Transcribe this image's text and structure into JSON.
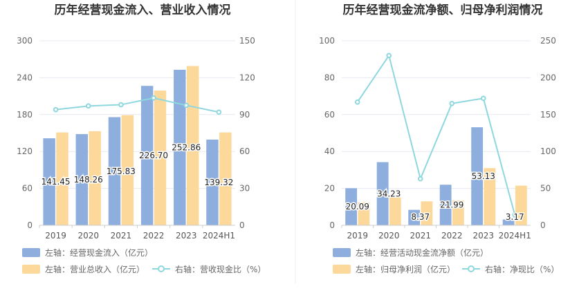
{
  "colors": {
    "bar_primary": "#8eaede",
    "bar_secondary": "#fcd99a",
    "line": "#8ed7de",
    "grid": "#e6e9f0",
    "divider": "#eeeeee"
  },
  "chart_data": [
    {
      "type": "bar",
      "title": "历年经营现金流入、营业收入情况",
      "categories": [
        "2019",
        "2020",
        "2021",
        "2022",
        "2023",
        "2024H1"
      ],
      "y_left_ticks": [
        "0",
        "60",
        "120",
        "180",
        "240",
        "300"
      ],
      "y_left_lim": [
        0,
        300
      ],
      "y_right_ticks": [
        "0",
        "30",
        "60",
        "90",
        "120",
        "150"
      ],
      "y_right_lim": [
        0,
        150
      ],
      "series": [
        {
          "name": "左轴：经营现金流入（亿元）",
          "type": "bar",
          "axis": "left",
          "values": [
            141.45,
            148.26,
            175.83,
            226.7,
            252.86,
            139.32
          ],
          "labels": [
            "141.45",
            "148.26",
            "175.83",
            "226.70",
            "252.86",
            "139.32"
          ]
        },
        {
          "name": "左轴：营业总收入（亿元）",
          "type": "bar",
          "axis": "left",
          "values": [
            151,
            153,
            179,
            219,
            259,
            151
          ]
        },
        {
          "name": "右轴：营收现金比（%）",
          "type": "line",
          "axis": "right",
          "values": [
            94,
            97,
            98,
            103.5,
            97.5,
            92
          ]
        }
      ]
    },
    {
      "type": "bar",
      "title": "历年经营现金流净额、归母净利润情况",
      "categories": [
        "2019",
        "2020",
        "2021",
        "2022",
        "2023",
        "2024H1"
      ],
      "y_left_ticks": [
        "0",
        "20",
        "40",
        "60",
        "80",
        "100"
      ],
      "y_left_lim": [
        0,
        100
      ],
      "y_right_ticks": [
        "0",
        "50",
        "100",
        "150",
        "200",
        "250"
      ],
      "y_right_lim": [
        0,
        250
      ],
      "series": [
        {
          "name": "左轴：经营活动现金流净额（亿元）",
          "type": "bar",
          "axis": "left",
          "values": [
            20.09,
            34.23,
            8.37,
            21.99,
            53.13,
            3.17
          ],
          "labels": [
            "20.09",
            "34.23",
            "8.37",
            "21.99",
            "53.13",
            "3.17"
          ]
        },
        {
          "name": "左轴：归母净利润（亿元）",
          "type": "bar",
          "axis": "left",
          "values": [
            12.5,
            15,
            13,
            13.5,
            31,
            21.5
          ]
        },
        {
          "name": "右轴：净现比（%）",
          "type": "line",
          "axis": "right",
          "values": [
            167,
            230,
            63,
            165,
            172,
            14
          ]
        }
      ]
    }
  ]
}
